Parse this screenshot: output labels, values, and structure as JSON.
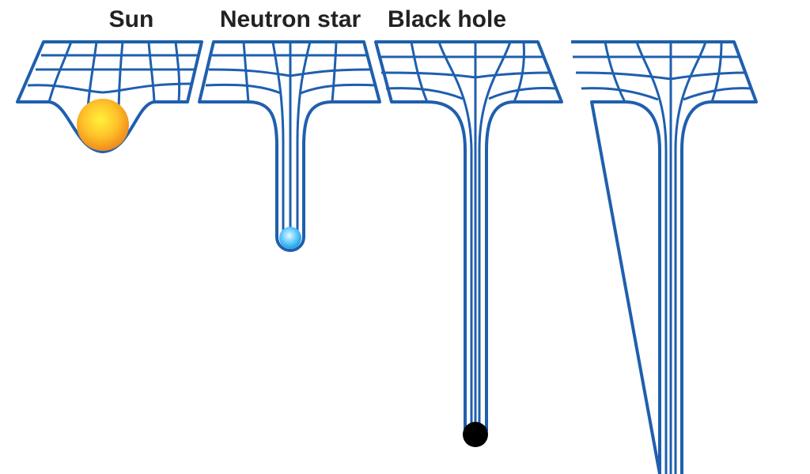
{
  "panels": [
    {
      "key": "sun",
      "label": "Sun"
    },
    {
      "key": "neutron_star",
      "label": "Neutron star"
    },
    {
      "key": "black_hole",
      "label": "Black hole"
    },
    {
      "key": "unlabeled",
      "label": ""
    }
  ],
  "colors": {
    "grid": "#1f5fae",
    "sun_core": "#fff23a",
    "sun_edge": "#f08a1c",
    "neutron_core": "#e6f8ff",
    "neutron_edge": "#1aa0e6",
    "black_hole": "#000000",
    "label": "#222222"
  },
  "icons": [
    "sun-icon",
    "neutron-star-icon",
    "black-hole-icon"
  ]
}
